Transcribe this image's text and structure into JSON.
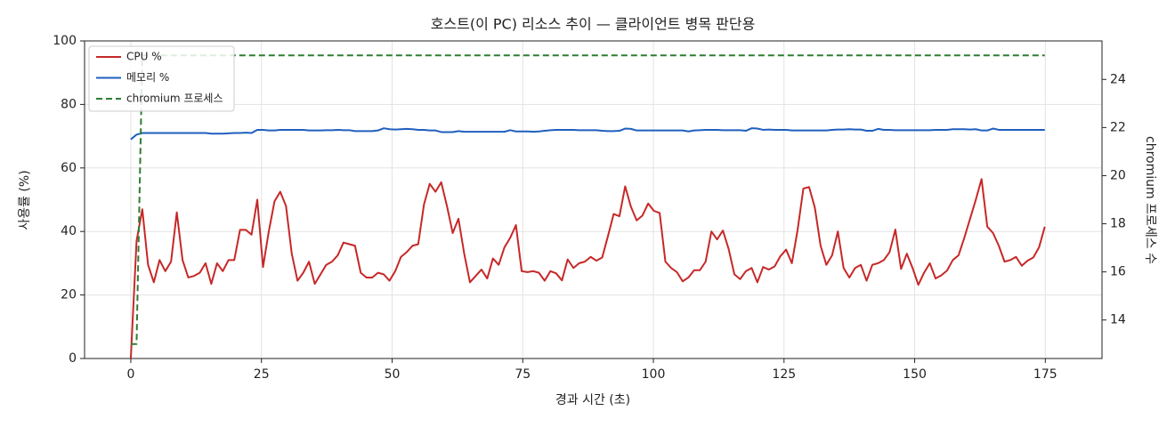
{
  "chart_data": {
    "type": "line",
    "title": "호스트(이 PC) 리소스 추이 — 클라이언트 병목 판단용",
    "x_label": "경과 시간 (초)",
    "y_label": "사용률 (%)",
    "y2_label": "chromium 프로세스 수",
    "x": [
      0,
      1.1,
      2.2,
      3.3,
      4.4,
      5.5,
      6.6,
      7.7,
      8.8,
      9.9,
      11,
      12.1,
      13.2,
      14.3,
      15.4,
      16.5,
      17.6,
      18.7,
      19.8,
      20.9,
      22,
      23.1,
      24.2,
      25.3,
      26.4,
      27.5,
      28.6,
      29.7,
      30.8,
      31.9,
      33,
      34.1,
      35.2,
      36.3,
      37.4,
      38.5,
      39.6,
      40.7,
      41.8,
      42.9,
      44,
      45.1,
      46.2,
      47.3,
      48.4,
      49.5,
      50.6,
      51.7,
      52.8,
      53.9,
      55,
      56.1,
      57.2,
      58.3,
      59.4,
      60.5,
      61.6,
      62.7,
      63.8,
      64.9,
      66,
      67.1,
      68.2,
      69.3,
      70.4,
      71.5,
      72.6,
      73.7,
      74.8,
      75.9,
      77,
      78.1,
      79.2,
      80.3,
      81.4,
      82.5,
      83.6,
      84.7,
      85.8,
      86.9,
      88,
      89.1,
      90.2,
      91.3,
      92.4,
      93.5,
      94.6,
      95.7,
      96.8,
      97.9,
      99,
      100.1,
      101.2,
      102.3,
      103.4,
      104.5,
      105.6,
      106.7,
      107.8,
      108.9,
      110,
      111.1,
      112.2,
      113.3,
      114.4,
      115.5,
      116.6,
      117.7,
      118.8,
      119.9,
      121,
      122.1,
      123.2,
      124.3,
      125.4,
      126.5,
      127.6,
      128.7,
      129.8,
      130.9,
      132,
      133.1,
      134.2,
      135.3,
      136.4,
      137.5,
      138.6,
      139.7,
      140.8,
      141.9,
      143,
      144.1,
      145.2,
      146.3,
      147.4,
      148.5,
      149.6,
      150.7,
      151.8,
      152.9,
      154,
      155.1,
      156.2,
      157.3,
      158.4,
      159.5,
      160.6,
      161.7,
      162.8,
      163.9,
      165,
      166.1,
      167.2,
      168.3,
      169.4,
      170.5,
      171.6,
      172.7,
      173.8,
      174.9
    ],
    "series": [
      {
        "name": "CPU %",
        "color": "#c62828",
        "linestyle": "solid",
        "axis": "y",
        "values": [
          0,
          37,
          47,
          29.5,
          24,
          31,
          27.5,
          30.5,
          46,
          31,
          25.5,
          26,
          27,
          30,
          23.5,
          30,
          27.5,
          31,
          31,
          40.5,
          40.5,
          39,
          50,
          28.8,
          40,
          49.5,
          52.5,
          48,
          33,
          24.5,
          27,
          30.5,
          23.5,
          26.5,
          29.5,
          30.5,
          32.5,
          36.5,
          36,
          35.5,
          27,
          25.5,
          25.5,
          27,
          26.5,
          24.5,
          27.5,
          32,
          33.5,
          35.5,
          36,
          48.5,
          55,
          52.5,
          55.5,
          48,
          39.5,
          44,
          33,
          24,
          26,
          28,
          25.2,
          31.5,
          29.5,
          35,
          38,
          42,
          27.5,
          27.2,
          27.5,
          27,
          24.5,
          27.5,
          26.8,
          24.6,
          31.2,
          28.5,
          30,
          30.5,
          32,
          30.8,
          31.8,
          38.5,
          45.5,
          44.8,
          54.2,
          47.8,
          43.5,
          45,
          48.8,
          46.5,
          45.8,
          30.5,
          28.5,
          27.2,
          24.3,
          25.5,
          27.8,
          27.8,
          30.5,
          40,
          37.5,
          40.3,
          34.5,
          26.5,
          25,
          27.5,
          28.5,
          24,
          28.8,
          28,
          29,
          32.2,
          34.3,
          30,
          40.5,
          53.5,
          54,
          47.5,
          35.5,
          29.5,
          32.5,
          40,
          28.5,
          25.5,
          28.5,
          29.5,
          24.5,
          29.5,
          30,
          31,
          33.5,
          40.6,
          28.2,
          33,
          28.5,
          23.2,
          27,
          30,
          25.2,
          26.2,
          27.7,
          31,
          32.5,
          38,
          44,
          50,
          56.5,
          41.5,
          39.5,
          35.5,
          30.5,
          31,
          32,
          29.2,
          30.8,
          31.8,
          35,
          41.5
        ]
      },
      {
        "name": "메모리 %",
        "color": "#1f5fbf",
        "linestyle": "solid",
        "axis": "y",
        "values": [
          69,
          70.5,
          71,
          71,
          71,
          71,
          71,
          71,
          71,
          71,
          71,
          71,
          71,
          71,
          70.8,
          70.8,
          70.8,
          70.9,
          71,
          71,
          71.1,
          71,
          72,
          72,
          71.8,
          71.8,
          72,
          72,
          72,
          72,
          72,
          71.8,
          71.8,
          71.8,
          71.9,
          71.9,
          72,
          71.9,
          71.9,
          71.6,
          71.6,
          71.6,
          71.6,
          71.8,
          72.5,
          72.2,
          72.1,
          72.2,
          72.3,
          72.2,
          72,
          72,
          71.8,
          71.8,
          71.3,
          71.3,
          71.3,
          71.6,
          71.4,
          71.4,
          71.4,
          71.4,
          71.4,
          71.4,
          71.4,
          71.4,
          71.9,
          71.5,
          71.5,
          71.5,
          71.4,
          71.5,
          71.7,
          71.9,
          72,
          72,
          72,
          72,
          71.9,
          71.9,
          71.9,
          71.9,
          71.7,
          71.6,
          71.6,
          71.7,
          72.4,
          72.3,
          71.8,
          71.8,
          71.8,
          71.8,
          71.8,
          71.8,
          71.8,
          71.8,
          71.8,
          71.5,
          71.8,
          71.9,
          72,
          72,
          72,
          71.9,
          71.9,
          71.9,
          71.9,
          71.7,
          72.5,
          72.4,
          72,
          72.1,
          72,
          72,
          72,
          71.8,
          71.8,
          71.8,
          71.8,
          71.8,
          71.8,
          71.8,
          72,
          72.1,
          72.1,
          72.2,
          72.1,
          72.1,
          71.7,
          71.7,
          72.3,
          72,
          72,
          71.9,
          71.9,
          71.9,
          71.9,
          71.9,
          71.9,
          71.9,
          72,
          72,
          72,
          72.2,
          72.2,
          72.2,
          72.1,
          72.2,
          71.8,
          71.8,
          72.4,
          72,
          72,
          72,
          72,
          72,
          72,
          72,
          72,
          72
        ]
      },
      {
        "name": "chromium 프로세스",
        "color": "#2e7d32",
        "linestyle": "dashed",
        "axis": "y2",
        "values": [
          13,
          13,
          25,
          25,
          25,
          25,
          25,
          25,
          25,
          25,
          25,
          25,
          25,
          25,
          25,
          25,
          25,
          25,
          25,
          25,
          25,
          25,
          25,
          25,
          25,
          25,
          25,
          25,
          25,
          25,
          25,
          25,
          25,
          25,
          25,
          25,
          25,
          25,
          25,
          25,
          25,
          25,
          25,
          25,
          25,
          25,
          25,
          25,
          25,
          25,
          25,
          25,
          25,
          25,
          25,
          25,
          25,
          25,
          25,
          25,
          25,
          25,
          25,
          25,
          25,
          25,
          25,
          25,
          25,
          25,
          25,
          25,
          25,
          25,
          25,
          25,
          25,
          25,
          25,
          25,
          25,
          25,
          25,
          25,
          25,
          25,
          25,
          25,
          25,
          25,
          25,
          25,
          25,
          25,
          25,
          25,
          25,
          25,
          25,
          25,
          25,
          25,
          25,
          25,
          25,
          25,
          25,
          25,
          25,
          25,
          25,
          25,
          25,
          25,
          25,
          25,
          25,
          25,
          25,
          25,
          25,
          25,
          25,
          25,
          25,
          25,
          25,
          25,
          25,
          25,
          25,
          25,
          25,
          25,
          25,
          25,
          25,
          25,
          25,
          25,
          25,
          25,
          25,
          25,
          25,
          25,
          25,
          25,
          25,
          25,
          25,
          25,
          25,
          25,
          25,
          25,
          25,
          25,
          25,
          25
        ]
      }
    ],
    "xlim": [
      -8.85,
      185.85
    ],
    "xticks": [
      0,
      25,
      50,
      75,
      100,
      125,
      150,
      175
    ],
    "ylim": [
      0,
      100
    ],
    "yticks": [
      0,
      20,
      40,
      60,
      80,
      100
    ],
    "y2lim": [
      12.4,
      25.6
    ],
    "y2ticks": [
      14,
      16,
      18,
      20,
      22,
      24
    ],
    "grid": true,
    "legend": "upper-left"
  }
}
